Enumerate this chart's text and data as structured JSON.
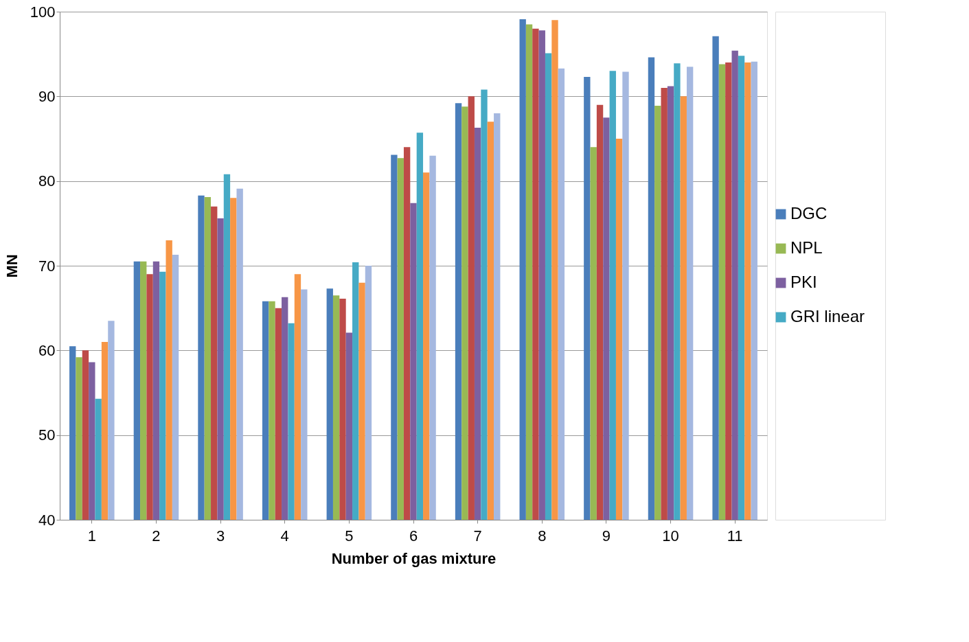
{
  "chart_data": {
    "type": "bar",
    "xlabel": "Number of gas mixture",
    "ylabel": "MN",
    "categories": [
      "1",
      "2",
      "3",
      "4",
      "5",
      "6",
      "7",
      "8",
      "9",
      "10",
      "11"
    ],
    "ylim": [
      40,
      100
    ],
    "yticks": [
      40,
      50,
      60,
      70,
      80,
      90,
      100
    ],
    "grid": "y",
    "legend": "right",
    "series": [
      {
        "name": "DGC",
        "color": "#4a7ebb",
        "values": [
          60.5,
          70.5,
          78.3,
          65.8,
          67.3,
          83.1,
          89.2,
          99.1,
          92.3,
          94.6,
          97.1
        ]
      },
      {
        "name": "NPL",
        "color": "#98b954",
        "values": [
          59.2,
          70.5,
          78.1,
          65.8,
          66.5,
          82.7,
          88.8,
          98.5,
          84.0,
          88.9,
          93.8
        ]
      },
      {
        "color": "#be4b48",
        "values": [
          60.0,
          69.0,
          77.0,
          65.0,
          66.1,
          84.0,
          90.0,
          98.0,
          89.0,
          91.0,
          94.0
        ]
      },
      {
        "name": "PKI",
        "color": "#7d60a0",
        "values": [
          58.6,
          70.5,
          75.6,
          66.3,
          62.1,
          77.4,
          86.3,
          97.8,
          87.5,
          91.2,
          95.4
        ]
      },
      {
        "name": "GRI linear",
        "color": "#46aac5",
        "values": [
          54.3,
          69.3,
          80.8,
          63.2,
          70.4,
          85.7,
          90.8,
          95.1,
          93.0,
          93.9,
          94.8
        ]
      },
      {
        "color": "#f79646",
        "values": [
          61.0,
          73.0,
          78.0,
          69.0,
          68.0,
          81.0,
          87.0,
          99.0,
          85.0,
          90.0,
          94.0
        ]
      },
      {
        "color": "#a5b8e0",
        "values": [
          63.5,
          71.3,
          79.1,
          67.2,
          70.0,
          83.0,
          88.0,
          93.3,
          92.9,
          93.5,
          94.1
        ]
      }
    ]
  }
}
